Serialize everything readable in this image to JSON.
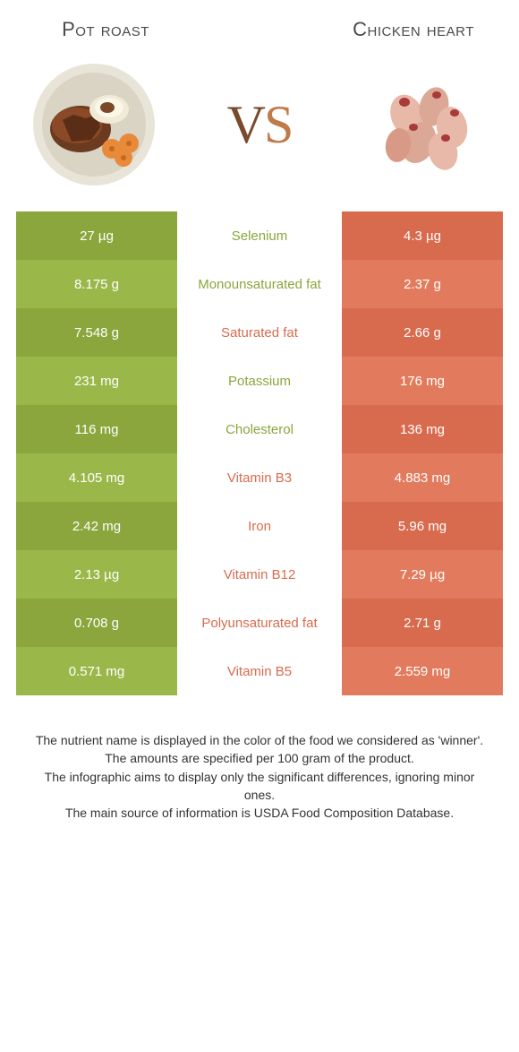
{
  "header": {
    "left_title": "Pot roast",
    "right_title": "Chicken heart",
    "vs": "VS"
  },
  "colors": {
    "left_dark": "#8aa63c",
    "left_light": "#9ab84a",
    "right_dark": "#d86b4e",
    "right_light": "#e27b5d",
    "mid_green": "#8aa63c",
    "mid_red": "#d86b4e"
  },
  "rows": [
    {
      "label": "Selenium",
      "left": "27 µg",
      "right": "4.3 µg",
      "winner": "left"
    },
    {
      "label": "Monounsaturated fat",
      "left": "8.175 g",
      "right": "2.37 g",
      "winner": "left"
    },
    {
      "label": "Saturated fat",
      "left": "7.548 g",
      "right": "2.66 g",
      "winner": "right"
    },
    {
      "label": "Potassium",
      "left": "231 mg",
      "right": "176 mg",
      "winner": "left"
    },
    {
      "label": "Cholesterol",
      "left": "116 mg",
      "right": "136 mg",
      "winner": "left"
    },
    {
      "label": "Vitamin B3",
      "left": "4.105 mg",
      "right": "4.883 mg",
      "winner": "right"
    },
    {
      "label": "Iron",
      "left": "2.42 mg",
      "right": "5.96 mg",
      "winner": "right"
    },
    {
      "label": "Vitamin B12",
      "left": "2.13 µg",
      "right": "7.29 µg",
      "winner": "right"
    },
    {
      "label": "Polyunsaturated fat",
      "left": "0.708 g",
      "right": "2.71 g",
      "winner": "right"
    },
    {
      "label": "Vitamin B5",
      "left": "0.571 mg",
      "right": "2.559 mg",
      "winner": "right"
    }
  ],
  "footnotes": [
    "The nutrient name is displayed in the color of the food we considered as 'winner'.",
    "The amounts are specified per 100 gram of the product.",
    "The infographic aims to display only the significant differences, ignoring minor ones.",
    "The main source of information is USDA Food Composition Database."
  ]
}
